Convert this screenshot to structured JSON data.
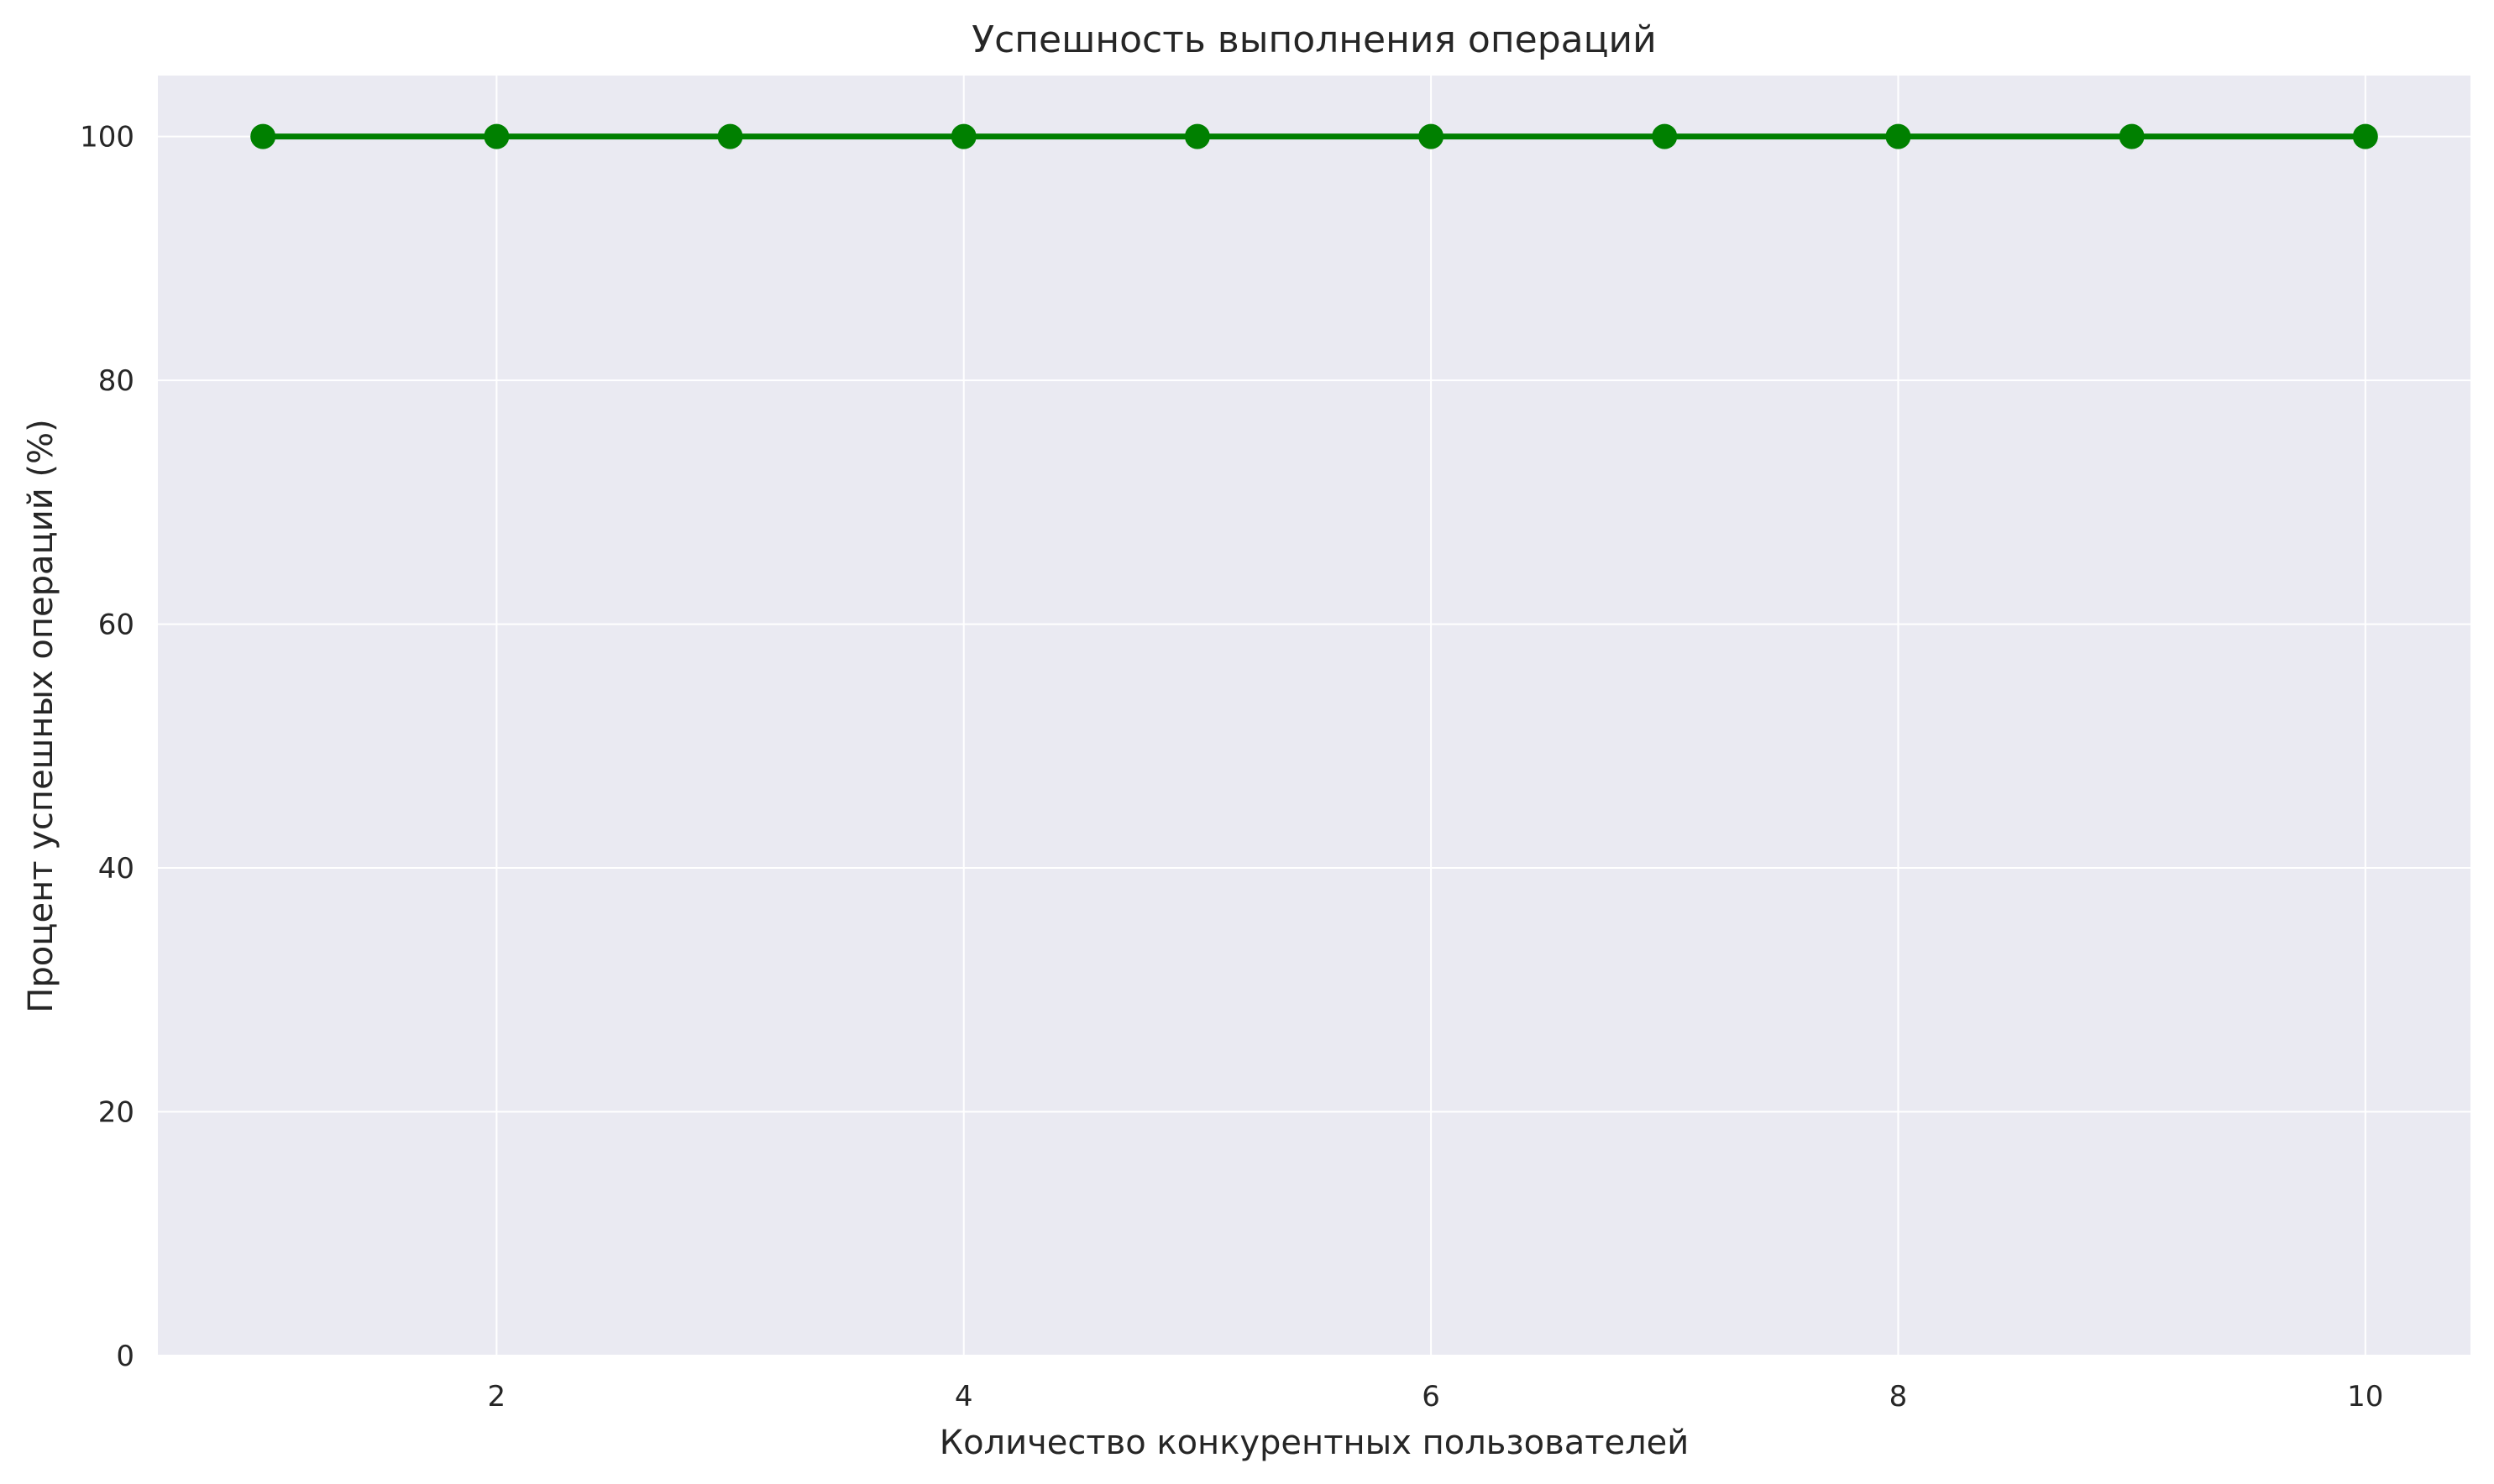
{
  "chart_data": {
    "type": "line",
    "title": "Успешность выполнения операций",
    "xlabel": "Количество конкурентных пользователей",
    "ylabel": "Процент успешных операций (%)",
    "x": [
      1,
      2,
      3,
      4,
      5,
      6,
      7,
      8,
      9,
      10
    ],
    "series": [
      {
        "values": [
          100,
          100,
          100,
          100,
          100,
          100,
          100,
          100,
          100,
          100
        ]
      }
    ],
    "xlim": [
      0.55,
      10.45
    ],
    "ylim": [
      0,
      105
    ],
    "xticks": [
      2,
      4,
      6,
      8,
      10
    ],
    "yticks": [
      0,
      20,
      40,
      60,
      80,
      100
    ],
    "grid": true,
    "legend": "none",
    "colors": {
      "line": "#008000",
      "plot_background": "#eaeaf2",
      "grid": "#ffffff",
      "text": "#262626"
    }
  }
}
